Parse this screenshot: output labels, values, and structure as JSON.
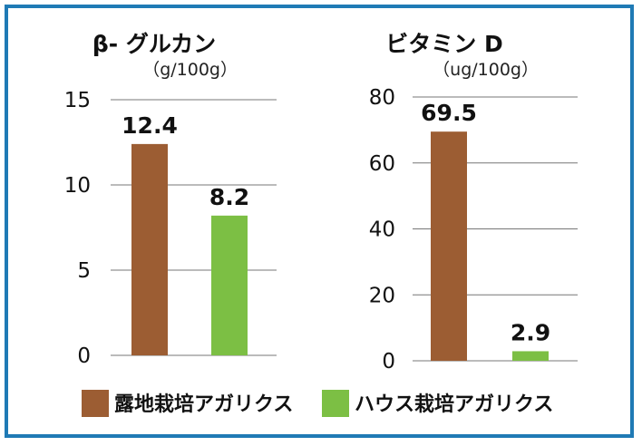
{
  "colors": {
    "outdoor": "#9c5d33",
    "house": "#7cbf44",
    "frame": "#1f7ab5",
    "grid": "#777777"
  },
  "chart_data": [
    {
      "type": "bar",
      "title": "β- グルカン",
      "unit": "（g/100g）",
      "categories": [
        "露地栽培アガリクス",
        "ハウス栽培アガリクス"
      ],
      "values": [
        12.4,
        8.2
      ],
      "value_labels": [
        "12.4",
        "8.2"
      ],
      "ylim": [
        0,
        15
      ],
      "yticks": [
        0,
        5,
        10,
        15
      ],
      "grid": true
    },
    {
      "type": "bar",
      "title": "ビタミン D",
      "unit": "（ug/100g）",
      "categories": [
        "露地栽培アガリクス",
        "ハウス栽培アガリクス"
      ],
      "values": [
        69.5,
        2.9
      ],
      "value_labels": [
        "69.5",
        "2.9"
      ],
      "ylim": [
        0,
        80
      ],
      "yticks": [
        0,
        20,
        40,
        60,
        80
      ],
      "grid": true
    }
  ],
  "legend": [
    {
      "label": "露地栽培アガリクス",
      "color": "#9c5d33"
    },
    {
      "label": "ハウス栽培アガリクス",
      "color": "#7cbf44"
    }
  ]
}
